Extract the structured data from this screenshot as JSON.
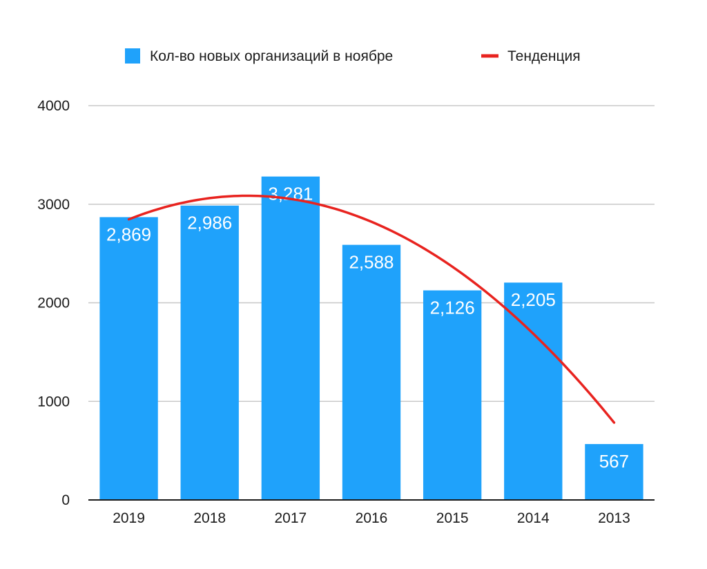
{
  "chart_data": {
    "type": "bar",
    "categories": [
      "2019",
      "2018",
      "2017",
      "2016",
      "2015",
      "2014",
      "2013"
    ],
    "series": [
      {
        "name": "Кол-во новых организаций в ноябре",
        "values": [
          2869,
          2986,
          3281,
          2588,
          2126,
          2205,
          567
        ],
        "value_labels": [
          "2,869",
          "2,986",
          "3,281",
          "2,588",
          "2,126",
          "2,205",
          "567"
        ],
        "color": "#1fa2fb"
      }
    ],
    "trendline": {
      "name": "Тенденция",
      "type": "polynomial",
      "order": 2,
      "color": "#e8231f"
    },
    "ylim": [
      0,
      4000
    ],
    "y_ticks": [
      "0",
      "1000",
      "2000",
      "3000",
      "4000"
    ],
    "grid": true,
    "legend_position": "top",
    "xlabel": "",
    "ylabel": "",
    "title": ""
  }
}
